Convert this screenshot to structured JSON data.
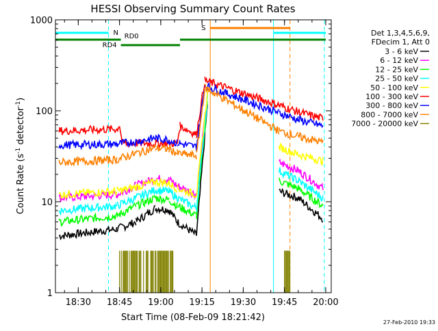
{
  "chart_data": {
    "type": "line",
    "title": "HESSI Observing Summary Count Rates",
    "xlabel": "Start Time (08-Feb-09 18:21:42)",
    "ylabel_parts": [
      "Count Rate (s",
      "-1",
      " detector",
      "-1",
      ")"
    ],
    "y_scale": "log",
    "ylim": [
      1,
      1000
    ],
    "xlim": [
      "18:21:42",
      "20:02:00"
    ],
    "x_ticks": [
      "18:30",
      "18:45",
      "19:00",
      "19:15",
      "19:30",
      "19:45",
      "20:00"
    ],
    "y_ticks": [
      "1",
      "10",
      "100",
      "1000"
    ],
    "grid": false,
    "legend_placement": "right",
    "legend_header": [
      "Det 1,3,4,5,6,9,",
      "FDecim 1, Att 0"
    ],
    "footer_timestamp": "27-Feb-2010 19:33",
    "data_gaps": [
      [
        "19:06",
        "19:06"
      ],
      [
        "19:40",
        "19:43"
      ]
    ],
    "series": [
      {
        "name": "3 - 6 keV",
        "color": "#000000",
        "points": [
          [
            "18:23",
            4.2
          ],
          [
            "18:44",
            5
          ],
          [
            "18:51",
            6
          ],
          [
            "18:58",
            8.5
          ],
          [
            "19:03",
            8.2
          ],
          [
            "19:06",
            6
          ],
          [
            "19:13",
            4.3
          ],
          [
            "19:17",
            120
          ],
          [
            "19:43",
            13
          ],
          [
            "19:50",
            11
          ],
          [
            "19:59",
            6.5
          ]
        ]
      },
      {
        "name": "6 - 12 keV",
        "color": "#ff00ff",
        "points": [
          [
            "18:23",
            11
          ],
          [
            "18:44",
            12
          ],
          [
            "18:51",
            15
          ],
          [
            "18:58",
            18
          ],
          [
            "19:03",
            17.5
          ],
          [
            "19:06",
            15
          ],
          [
            "19:13",
            12
          ],
          [
            "19:17",
            150
          ],
          [
            "19:43",
            27
          ],
          [
            "19:50",
            22
          ],
          [
            "19:59",
            14
          ]
        ]
      },
      {
        "name": "12 - 25 keV",
        "color": "#00ff00",
        "points": [
          [
            "18:23",
            6
          ],
          [
            "18:44",
            7
          ],
          [
            "18:51",
            9
          ],
          [
            "18:58",
            11
          ],
          [
            "19:03",
            10.5
          ],
          [
            "19:06",
            9
          ],
          [
            "19:13",
            7
          ],
          [
            "19:17",
            130
          ],
          [
            "19:43",
            17
          ],
          [
            "19:50",
            14
          ],
          [
            "19:59",
            9
          ]
        ]
      },
      {
        "name": "25 - 50 keV",
        "color": "#00ffff",
        "points": [
          [
            "18:23",
            8
          ],
          [
            "18:44",
            9
          ],
          [
            "18:51",
            11
          ],
          [
            "18:58",
            13.5
          ],
          [
            "19:03",
            13
          ],
          [
            "19:06",
            11
          ],
          [
            "19:13",
            8.5
          ],
          [
            "19:17",
            140
          ],
          [
            "19:43",
            22
          ],
          [
            "19:50",
            17
          ],
          [
            "19:59",
            11
          ]
        ]
      },
      {
        "name": "50 - 100 keV",
        "color": "#ffff00",
        "points": [
          [
            "18:23",
            12
          ],
          [
            "18:44",
            13
          ],
          [
            "18:51",
            14.5
          ],
          [
            "18:58",
            16.5
          ],
          [
            "19:03",
            16
          ],
          [
            "19:06",
            14
          ],
          [
            "19:13",
            12
          ],
          [
            "19:17",
            160
          ],
          [
            "19:43",
            40
          ],
          [
            "19:50",
            33
          ],
          [
            "19:59",
            28
          ]
        ]
      },
      {
        "name": "100 - 300 keV",
        "color": "#ff0000",
        "points": [
          [
            "18:23",
            60
          ],
          [
            "18:44",
            63
          ],
          [
            "18:45",
            70
          ],
          [
            "18:46",
            44
          ],
          [
            "19:06",
            44
          ],
          [
            "19:07",
            68
          ],
          [
            "19:13",
            55
          ],
          [
            "19:16",
            215
          ],
          [
            "19:43",
            115
          ],
          [
            "19:50",
            97
          ],
          [
            "19:59",
            82
          ]
        ]
      },
      {
        "name": "300 - 800 keV",
        "color": "#0000ff",
        "points": [
          [
            "18:23",
            42
          ],
          [
            "18:44",
            43
          ],
          [
            "18:51",
            46
          ],
          [
            "18:58",
            50
          ],
          [
            "19:03",
            48
          ],
          [
            "19:06",
            44
          ],
          [
            "19:13",
            40
          ],
          [
            "19:16",
            190
          ],
          [
            "19:43",
            95
          ],
          [
            "19:50",
            80
          ],
          [
            "19:59",
            68
          ]
        ]
      },
      {
        "name": "800 - 7000 keV",
        "color": "#ff8000",
        "points": [
          [
            "18:23",
            27
          ],
          [
            "18:44",
            29
          ],
          [
            "18:51",
            34
          ],
          [
            "18:58",
            39
          ],
          [
            "19:03",
            38
          ],
          [
            "19:06",
            34
          ],
          [
            "19:13",
            32
          ],
          [
            "19:16",
            180
          ],
          [
            "19:43",
            60
          ],
          [
            "19:50",
            52
          ],
          [
            "19:59",
            45
          ]
        ]
      },
      {
        "name": "7000 - 20000 keV",
        "color": "#808000",
        "points": [
          [
            "18:45",
            1.5
          ],
          [
            "19:05",
            1.5
          ],
          [
            "19:45",
            1.5
          ],
          [
            "19:47",
            1.5
          ]
        ]
      }
    ],
    "annotations": {
      "night": {
        "label": "N",
        "color": "#00ffff",
        "intervals": [
          [
            "18:21:42",
            "18:41"
          ],
          [
            "19:41",
            "20:00"
          ]
        ],
        "boundaries": [
          "18:21:42",
          "18:41",
          "19:41",
          "19:59:30"
        ]
      },
      "saa": {
        "label": "S",
        "color": "#ff8000",
        "intervals": [
          [
            "19:18",
            "19:47"
          ]
        ],
        "boundaries": [
          "19:18",
          "19:47"
        ]
      },
      "rd0": {
        "label": "RD0",
        "color": "#008000",
        "intervals": [
          [
            "18:21:42",
            "18:45:30"
          ],
          [
            "19:07",
            "20:00"
          ]
        ]
      },
      "rd4": {
        "label": "RD4",
        "color": "#008000",
        "intervals": [
          [
            "18:45:30",
            "19:07"
          ]
        ]
      }
    }
  }
}
